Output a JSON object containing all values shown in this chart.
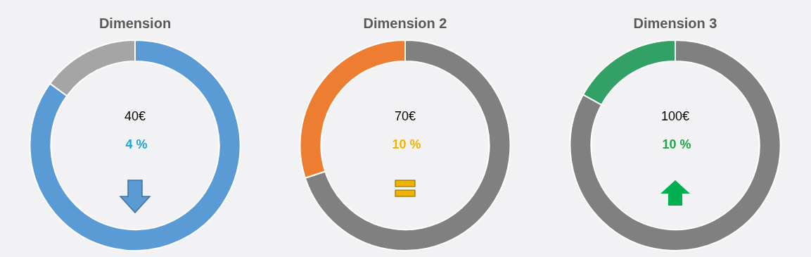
{
  "chart_data": [
    {
      "type": "donut",
      "title": "Dimension",
      "categories": [
        null,
        null
      ],
      "values": [
        85,
        15
      ],
      "colors": [
        "#5b9bd5",
        "#a5a5a5"
      ],
      "annotations": [
        "40€",
        "4 %"
      ]
    },
    {
      "type": "donut",
      "title": "Dimension 2",
      "categories": [
        null,
        null
      ],
      "values": [
        70,
        30
      ],
      "colors": [
        "#808080",
        "#ed7d31"
      ],
      "annotations": [
        "70€",
        "10 %"
      ]
    },
    {
      "type": "donut",
      "title": "Dimension 3",
      "categories": [
        null,
        null
      ],
      "values": [
        83,
        17
      ],
      "colors": [
        "#808080",
        "#33a065"
      ],
      "annotations": [
        "100€",
        "10 %"
      ]
    }
  ]
}
